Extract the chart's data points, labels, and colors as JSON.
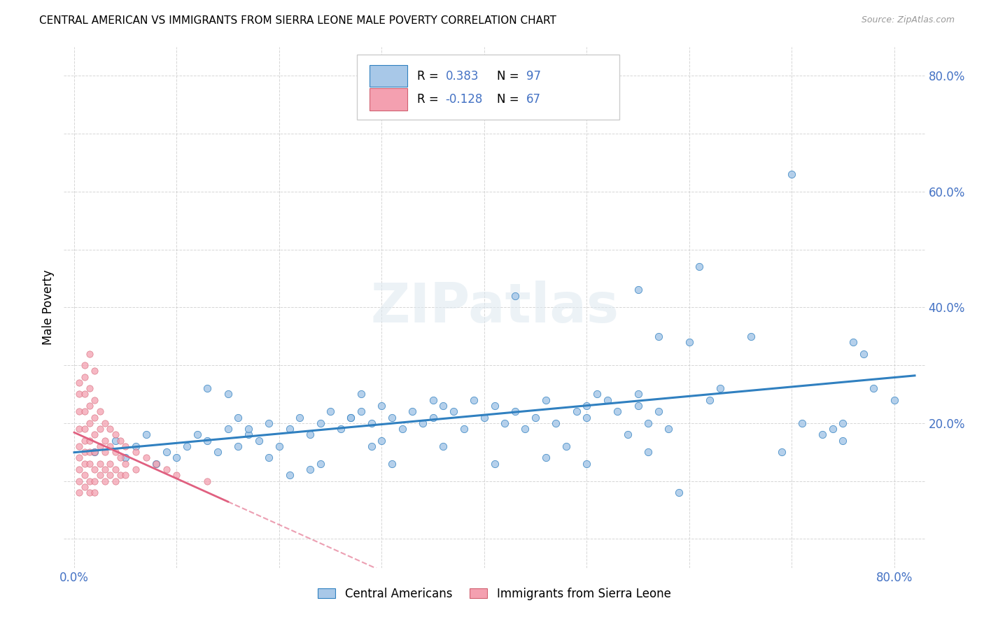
{
  "title": "CENTRAL AMERICAN VS IMMIGRANTS FROM SIERRA LEONE MALE POVERTY CORRELATION CHART",
  "source": "Source: ZipAtlas.com",
  "ylabel": "Male Poverty",
  "color_blue": "#a8c8e8",
  "color_pink": "#f4a0b0",
  "line_blue": "#3080c0",
  "line_pink": "#e06080",
  "R_blue": 0.383,
  "N_blue": 97,
  "R_pink": -0.128,
  "N_pink": 67,
  "watermark": "ZIPatlas",
  "legend_label_blue": "Central Americans",
  "legend_label_pink": "Immigrants from Sierra Leone",
  "xlim": [
    -0.01,
    0.83
  ],
  "ylim": [
    -0.05,
    0.85
  ],
  "blue_scatter": [
    [
      0.02,
      0.15
    ],
    [
      0.04,
      0.17
    ],
    [
      0.05,
      0.14
    ],
    [
      0.06,
      0.16
    ],
    [
      0.07,
      0.18
    ],
    [
      0.08,
      0.13
    ],
    [
      0.09,
      0.15
    ],
    [
      0.1,
      0.14
    ],
    [
      0.11,
      0.16
    ],
    [
      0.12,
      0.18
    ],
    [
      0.13,
      0.17
    ],
    [
      0.14,
      0.15
    ],
    [
      0.15,
      0.19
    ],
    [
      0.16,
      0.16
    ],
    [
      0.17,
      0.18
    ],
    [
      0.18,
      0.17
    ],
    [
      0.19,
      0.2
    ],
    [
      0.2,
      0.16
    ],
    [
      0.21,
      0.19
    ],
    [
      0.22,
      0.21
    ],
    [
      0.23,
      0.18
    ],
    [
      0.24,
      0.2
    ],
    [
      0.25,
      0.22
    ],
    [
      0.26,
      0.19
    ],
    [
      0.27,
      0.21
    ],
    [
      0.28,
      0.25
    ],
    [
      0.28,
      0.22
    ],
    [
      0.29,
      0.2
    ],
    [
      0.3,
      0.23
    ],
    [
      0.3,
      0.17
    ],
    [
      0.31,
      0.21
    ],
    [
      0.32,
      0.19
    ],
    [
      0.33,
      0.22
    ],
    [
      0.34,
      0.2
    ],
    [
      0.35,
      0.24
    ],
    [
      0.35,
      0.21
    ],
    [
      0.36,
      0.23
    ],
    [
      0.37,
      0.22
    ],
    [
      0.38,
      0.19
    ],
    [
      0.39,
      0.24
    ],
    [
      0.4,
      0.21
    ],
    [
      0.41,
      0.23
    ],
    [
      0.42,
      0.2
    ],
    [
      0.43,
      0.22
    ],
    [
      0.44,
      0.19
    ],
    [
      0.45,
      0.21
    ],
    [
      0.46,
      0.24
    ],
    [
      0.47,
      0.2
    ],
    [
      0.48,
      0.16
    ],
    [
      0.49,
      0.22
    ],
    [
      0.5,
      0.21
    ],
    [
      0.5,
      0.23
    ],
    [
      0.51,
      0.25
    ],
    [
      0.52,
      0.24
    ],
    [
      0.53,
      0.22
    ],
    [
      0.54,
      0.18
    ],
    [
      0.55,
      0.25
    ],
    [
      0.55,
      0.23
    ],
    [
      0.56,
      0.2
    ],
    [
      0.57,
      0.22
    ],
    [
      0.58,
      0.19
    ],
    [
      0.59,
      0.08
    ],
    [
      0.6,
      0.34
    ],
    [
      0.61,
      0.47
    ],
    [
      0.62,
      0.24
    ],
    [
      0.63,
      0.26
    ],
    [
      0.55,
      0.43
    ],
    [
      0.57,
      0.35
    ],
    [
      0.66,
      0.35
    ],
    [
      0.69,
      0.15
    ],
    [
      0.7,
      0.63
    ],
    [
      0.71,
      0.2
    ],
    [
      0.73,
      0.18
    ],
    [
      0.74,
      0.19
    ],
    [
      0.75,
      0.17
    ],
    [
      0.75,
      0.2
    ],
    [
      0.76,
      0.34
    ],
    [
      0.77,
      0.32
    ],
    [
      0.78,
      0.26
    ],
    [
      0.13,
      0.26
    ],
    [
      0.15,
      0.25
    ],
    [
      0.16,
      0.21
    ],
    [
      0.17,
      0.19
    ],
    [
      0.19,
      0.14
    ],
    [
      0.21,
      0.11
    ],
    [
      0.23,
      0.12
    ],
    [
      0.24,
      0.13
    ],
    [
      0.27,
      0.21
    ],
    [
      0.29,
      0.16
    ],
    [
      0.31,
      0.13
    ],
    [
      0.36,
      0.16
    ],
    [
      0.41,
      0.13
    ],
    [
      0.46,
      0.14
    ],
    [
      0.5,
      0.13
    ],
    [
      0.56,
      0.15
    ],
    [
      0.43,
      0.42
    ],
    [
      0.8,
      0.24
    ]
  ],
  "pink_scatter": [
    [
      0.005,
      0.27
    ],
    [
      0.005,
      0.25
    ],
    [
      0.005,
      0.22
    ],
    [
      0.005,
      0.19
    ],
    [
      0.005,
      0.16
    ],
    [
      0.005,
      0.14
    ],
    [
      0.005,
      0.12
    ],
    [
      0.005,
      0.1
    ],
    [
      0.005,
      0.08
    ],
    [
      0.01,
      0.28
    ],
    [
      0.01,
      0.25
    ],
    [
      0.01,
      0.22
    ],
    [
      0.01,
      0.19
    ],
    [
      0.01,
      0.17
    ],
    [
      0.01,
      0.15
    ],
    [
      0.01,
      0.13
    ],
    [
      0.01,
      0.11
    ],
    [
      0.01,
      0.09
    ],
    [
      0.015,
      0.26
    ],
    [
      0.015,
      0.23
    ],
    [
      0.015,
      0.2
    ],
    [
      0.015,
      0.17
    ],
    [
      0.015,
      0.15
    ],
    [
      0.015,
      0.13
    ],
    [
      0.015,
      0.1
    ],
    [
      0.015,
      0.08
    ],
    [
      0.02,
      0.24
    ],
    [
      0.02,
      0.21
    ],
    [
      0.02,
      0.18
    ],
    [
      0.02,
      0.15
    ],
    [
      0.02,
      0.12
    ],
    [
      0.02,
      0.1
    ],
    [
      0.02,
      0.08
    ],
    [
      0.025,
      0.22
    ],
    [
      0.025,
      0.19
    ],
    [
      0.025,
      0.16
    ],
    [
      0.025,
      0.13
    ],
    [
      0.025,
      0.11
    ],
    [
      0.03,
      0.2
    ],
    [
      0.03,
      0.17
    ],
    [
      0.03,
      0.15
    ],
    [
      0.03,
      0.12
    ],
    [
      0.03,
      0.1
    ],
    [
      0.035,
      0.19
    ],
    [
      0.035,
      0.16
    ],
    [
      0.035,
      0.13
    ],
    [
      0.035,
      0.11
    ],
    [
      0.04,
      0.18
    ],
    [
      0.04,
      0.15
    ],
    [
      0.04,
      0.12
    ],
    [
      0.04,
      0.1
    ],
    [
      0.045,
      0.17
    ],
    [
      0.045,
      0.14
    ],
    [
      0.045,
      0.11
    ],
    [
      0.05,
      0.16
    ],
    [
      0.05,
      0.13
    ],
    [
      0.05,
      0.11
    ],
    [
      0.06,
      0.15
    ],
    [
      0.06,
      0.12
    ],
    [
      0.07,
      0.14
    ],
    [
      0.08,
      0.13
    ],
    [
      0.09,
      0.12
    ],
    [
      0.01,
      0.3
    ],
    [
      0.015,
      0.32
    ],
    [
      0.02,
      0.29
    ],
    [
      0.1,
      0.11
    ],
    [
      0.13,
      0.1
    ]
  ]
}
